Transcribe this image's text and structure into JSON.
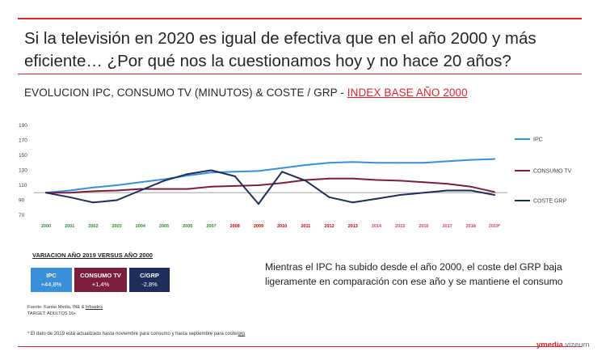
{
  "header": {
    "title": "Si la televisión en 2020 es igual de efectiva que en el año 2000 y más eficiente… ¿Por qué nos la cuestionamos hoy y no hace 20 años?",
    "subtitle_main": "EVOLUCION IPC, CONSUMO TV (MINUTOS) & COSTE / GRP - ",
    "subtitle_highlight": "INDEX BASE AÑO 2000"
  },
  "chart_data": {
    "type": "line",
    "title": "EVOLUCION IPC, CONSUMO TV (MINUTOS) & COSTE / GRP - INDEX BASE AÑO 2000",
    "categories": [
      "2000",
      "2001",
      "2002",
      "2003",
      "2004",
      "2005",
      "2006",
      "2007",
      "2008",
      "2009",
      "2010",
      "2011",
      "2012",
      "2013",
      "2014",
      "2015",
      "2016",
      "2017",
      "2018",
      "2019*"
    ],
    "category_colors": [
      "#2e8b2e",
      "#2e8b2e",
      "#2e8b2e",
      "#2e8b2e",
      "#2e8b2e",
      "#2e8b2e",
      "#2e8b2e",
      "#2e8b2e",
      "#c00000",
      "#c00000",
      "#c00000",
      "#c00000",
      "#c00000",
      "#c00000",
      "#e0406a",
      "#e0406a",
      "#e0406a",
      "#e0406a",
      "#e0406a",
      "#e0406a"
    ],
    "yticks": [
      70,
      90,
      110,
      130,
      150,
      170,
      190
    ],
    "ylim": [
      70,
      190
    ],
    "reference_line": 100,
    "series": [
      {
        "name": "IPC",
        "color": "#3b8fd6",
        "values": [
          100,
          103,
          107,
          110,
          114,
          118,
          123,
          127,
          128,
          129,
          133,
          137,
          140,
          141,
          140,
          140,
          140,
          142,
          144,
          145
        ]
      },
      {
        "name": "CONSUMO TV",
        "color": "#7d1f3c",
        "values": [
          100,
          100,
          102,
          103,
          105,
          105,
          105,
          108,
          109,
          110,
          113,
          117,
          119,
          119,
          117,
          116,
          114,
          112,
          108,
          101
        ]
      },
      {
        "name": "COSTE GRP",
        "color": "#1e2d5a",
        "values": [
          100,
          94,
          87,
          90,
          103,
          116,
          125,
          130,
          122,
          85,
          128,
          116,
          94,
          87,
          92,
          97,
          100,
          103,
          103,
          97
        ]
      }
    ]
  },
  "variation": {
    "title": "VARIACION AÑO 2019 VERSUS AÑO 2000",
    "boxes": [
      {
        "label": "IPC",
        "value": "+44,8%",
        "color": "#3b8fd6"
      },
      {
        "label": "CONSUMO TV",
        "value": "+1,4%",
        "color": "#7d1f3c"
      },
      {
        "label": "C/GRP",
        "value": "-2,8%",
        "color": "#1e2d5a"
      }
    ]
  },
  "source": {
    "line1_pre": "Fuente: Kantar Media, INE & ",
    "line1_link": "Infoadex",
    "line2": "TARGET: ADULTOS 16+"
  },
  "note": "Mientras el IPC ha subido desde el año 2000, el coste del GRP baja ligeramente en comparación con ese año y se mantiene el consumo",
  "footnote": {
    "pre": "* El dato de 2019 está actualizado hasta noviembre para consumo y hasta septiembre para coste/",
    "link": "grp"
  },
  "logo": {
    "part1": "ymedia",
    "part2": "vizeum"
  }
}
